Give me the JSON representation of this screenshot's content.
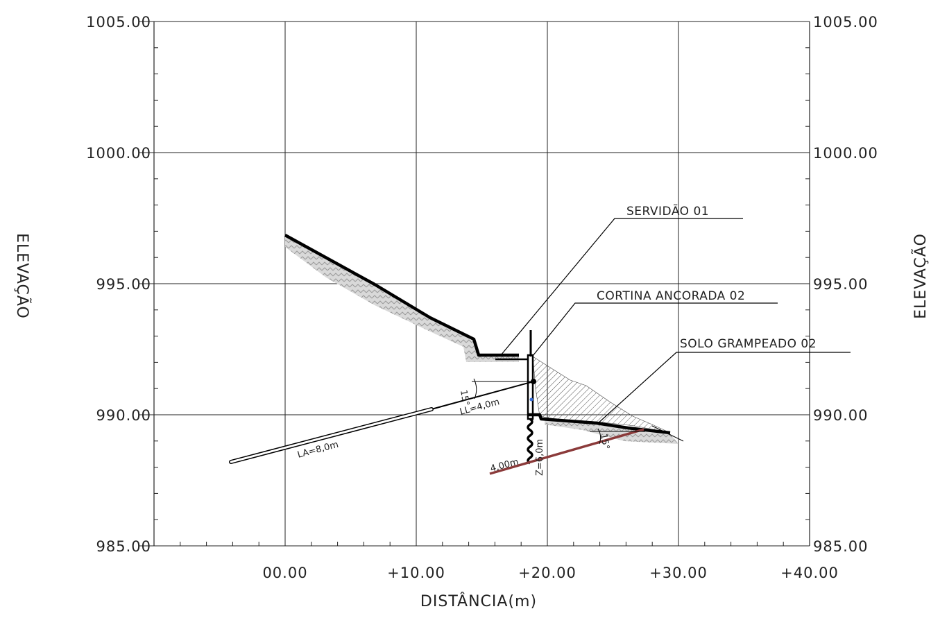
{
  "y_axis": {
    "title": "ELEVAÇÃO",
    "ticks": [
      "1005.00",
      "1000.00",
      "995.00",
      "990.00",
      "985.00"
    ]
  },
  "x_axis": {
    "title": "DISTÂNCIA(m)",
    "ticks": [
      "00.00",
      "+10.00",
      "+20.00",
      "+30.00",
      "+40.00"
    ]
  },
  "callouts": {
    "servidao": "SERVIDÃO 01",
    "cortina": "CORTINA ANCORADA 02",
    "solo": "SOLO GRAMPEADO 02"
  },
  "dimensions": {
    "anchor_free_length": "LL=4,0m",
    "anchor_bonded_length": "LA=8,0m",
    "anchor_angle": "15°",
    "nail_angle": "15°",
    "nail_length": "4,00m",
    "wall_height": "Z=6,0m"
  },
  "colors": {
    "grid": "#222222",
    "profile": "#000000",
    "soil_nail": "#8b3a3a",
    "hatch": "#bdbdbd"
  }
}
